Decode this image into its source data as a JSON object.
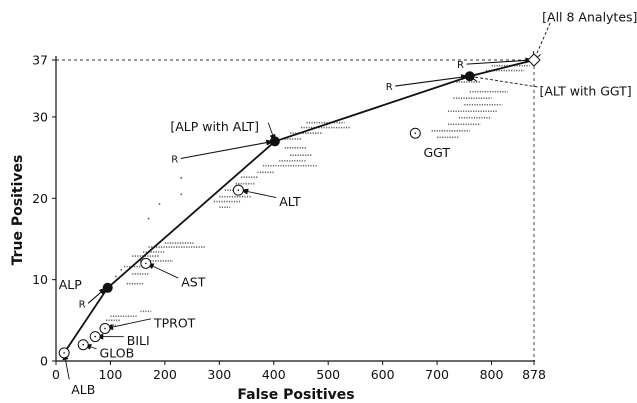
{
  "chart_data": {
    "type": "scatter",
    "xlabel": "False Positives",
    "ylabel": "True Positives",
    "xlim": [
      0,
      878
    ],
    "ylim": [
      0,
      37
    ],
    "x_ticks": [
      "0",
      "100",
      "200",
      "300",
      "400",
      "500",
      "600",
      "700",
      "800",
      "878"
    ],
    "x_tick_values": [
      0,
      100,
      200,
      300,
      400,
      500,
      600,
      700,
      800,
      878
    ],
    "y_ticks": [
      "0",
      "10",
      "20",
      "30",
      "37"
    ],
    "y_tick_values": [
      0,
      10,
      20,
      30,
      37
    ],
    "hull": [
      {
        "x": 15,
        "y": 1
      },
      {
        "x": 95,
        "y": 9
      },
      {
        "x": 402,
        "y": 27
      },
      {
        "x": 760,
        "y": 35
      },
      {
        "x": 878,
        "y": 37
      }
    ],
    "filled_points": [
      {
        "x": 95,
        "y": 9
      },
      {
        "x": 402,
        "y": 27
      },
      {
        "x": 760,
        "y": 35
      }
    ],
    "open_points": [
      {
        "name": "ALB",
        "x": 15,
        "y": 1
      },
      {
        "name": "GLOB",
        "x": 50,
        "y": 2
      },
      {
        "name": "BILI",
        "x": 72,
        "y": 3
      },
      {
        "name": "TPROT",
        "x": 90,
        "y": 4
      },
      {
        "name": "AST",
        "x": 165,
        "y": 12
      },
      {
        "name": "ALT",
        "x": 335,
        "y": 21
      },
      {
        "name": "GGT",
        "x": 660,
        "y": 28
      }
    ],
    "diamond_point": {
      "x": 878,
      "y": 37
    },
    "annotations": [
      {
        "text": "ALB",
        "x": 28,
        "y": -3.5,
        "anchor": "start",
        "arrow_to": [
          15,
          1
        ]
      },
      {
        "text": "GLOB",
        "x": 80,
        "y": 1,
        "anchor": "start",
        "arrow_to": [
          52,
          2
        ]
      },
      {
        "text": "BILI",
        "x": 130,
        "y": 2.5,
        "anchor": "start",
        "arrow_to": [
          74,
          3
        ]
      },
      {
        "text": "TPROT",
        "x": 180,
        "y": 4.7,
        "anchor": "start",
        "arrow_to": [
          92,
          4
        ]
      },
      {
        "text": "AST",
        "x": 230,
        "y": 9.7,
        "anchor": "start",
        "arrow_to": [
          167,
          12
        ]
      },
      {
        "text": "ALT",
        "x": 410,
        "y": 19.6,
        "anchor": "start",
        "arrow_to": [
          340,
          21
        ]
      },
      {
        "text": "GGT",
        "x": 675,
        "y": 25.6,
        "anchor": "start",
        "arrow_to": null
      },
      {
        "text": "ALP",
        "x": 5,
        "y": 9.4,
        "anchor": "start",
        "arrow_to": null
      },
      {
        "text": "[ALP with ALT]",
        "x": 210,
        "y": 28.8,
        "anchor": "start",
        "arrow_to": [
          402,
          27
        ]
      },
      {
        "text": "[ALT with GGT]",
        "x": 888,
        "y": 33.2,
        "anchor": "start",
        "arrow_to": [
          760,
          35
        ]
      },
      {
        "text": "[All 8 Analytes]",
        "x": 893,
        "y": 42.3,
        "anchor": "start",
        "arrow_to": [
          878,
          37
        ]
      }
    ],
    "r_markers": [
      {
        "text": "R",
        "x": 48,
        "y": 6.6,
        "arrow_to": [
          92,
          9
        ]
      },
      {
        "text": "R",
        "x": 218,
        "y": 24.4,
        "arrow_to": [
          399,
          27
        ]
      },
      {
        "text": "R",
        "x": 612,
        "y": 33.3,
        "arrow_to": [
          757,
          35
        ]
      },
      {
        "text": "R",
        "x": 743,
        "y": 36,
        "arrow_to": [
          875,
          37
        ]
      }
    ],
    "cloud_segments": [
      {
        "y": 4.4,
        "x1": 95,
        "x2": 110
      },
      {
        "y": 5.0,
        "x1": 92,
        "x2": 118
      },
      {
        "y": 5.5,
        "x1": 100,
        "x2": 150
      },
      {
        "y": 6.1,
        "x1": 155,
        "x2": 175
      },
      {
        "y": 9.5,
        "x1": 130,
        "x2": 160
      },
      {
        "y": 10.7,
        "x1": 140,
        "x2": 170
      },
      {
        "y": 11.6,
        "x1": 125,
        "x2": 175
      },
      {
        "y": 12.3,
        "x1": 150,
        "x2": 215
      },
      {
        "y": 12.9,
        "x1": 140,
        "x2": 190
      },
      {
        "y": 13.4,
        "x1": 160,
        "x2": 200
      },
      {
        "y": 14.0,
        "x1": 170,
        "x2": 275
      },
      {
        "y": 14.5,
        "x1": 200,
        "x2": 255
      },
      {
        "y": 18.9,
        "x1": 300,
        "x2": 320
      },
      {
        "y": 19.6,
        "x1": 290,
        "x2": 340
      },
      {
        "y": 20.2,
        "x1": 300,
        "x2": 360
      },
      {
        "y": 21.0,
        "x1": 310,
        "x2": 355
      },
      {
        "y": 21.8,
        "x1": 330,
        "x2": 365
      },
      {
        "y": 22.6,
        "x1": 340,
        "x2": 370
      },
      {
        "y": 23.2,
        "x1": 370,
        "x2": 400
      },
      {
        "y": 24.0,
        "x1": 380,
        "x2": 480
      },
      {
        "y": 24.6,
        "x1": 410,
        "x2": 460
      },
      {
        "y": 25.3,
        "x1": 430,
        "x2": 470
      },
      {
        "y": 26.2,
        "x1": 420,
        "x2": 460
      },
      {
        "y": 27.3,
        "x1": 420,
        "x2": 450
      },
      {
        "y": 28.0,
        "x1": 430,
        "x2": 490
      },
      {
        "y": 28.7,
        "x1": 450,
        "x2": 540
      },
      {
        "y": 29.3,
        "x1": 460,
        "x2": 530
      },
      {
        "y": 27.5,
        "x1": 700,
        "x2": 740
      },
      {
        "y": 28.3,
        "x1": 690,
        "x2": 760
      },
      {
        "y": 29.1,
        "x1": 720,
        "x2": 780
      },
      {
        "y": 29.9,
        "x1": 740,
        "x2": 800
      },
      {
        "y": 30.7,
        "x1": 720,
        "x2": 810
      },
      {
        "y": 31.5,
        "x1": 750,
        "x2": 820
      },
      {
        "y": 32.3,
        "x1": 730,
        "x2": 800
      },
      {
        "y": 33.1,
        "x1": 760,
        "x2": 830
      },
      {
        "y": 34.3,
        "x1": 735,
        "x2": 780
      },
      {
        "y": 35.7,
        "x1": 790,
        "x2": 860
      },
      {
        "y": 36.3,
        "x1": 800,
        "x2": 870
      }
    ],
    "cloud_dots": [
      {
        "x": 170,
        "y": 17.5
      },
      {
        "x": 190,
        "y": 19.3
      },
      {
        "x": 230,
        "y": 20.5
      },
      {
        "x": 120,
        "y": 11.2
      },
      {
        "x": 110,
        "y": 10.4
      },
      {
        "x": 230,
        "y": 22.5
      }
    ],
    "ref_lines": {
      "x": 878,
      "y": 37
    }
  }
}
